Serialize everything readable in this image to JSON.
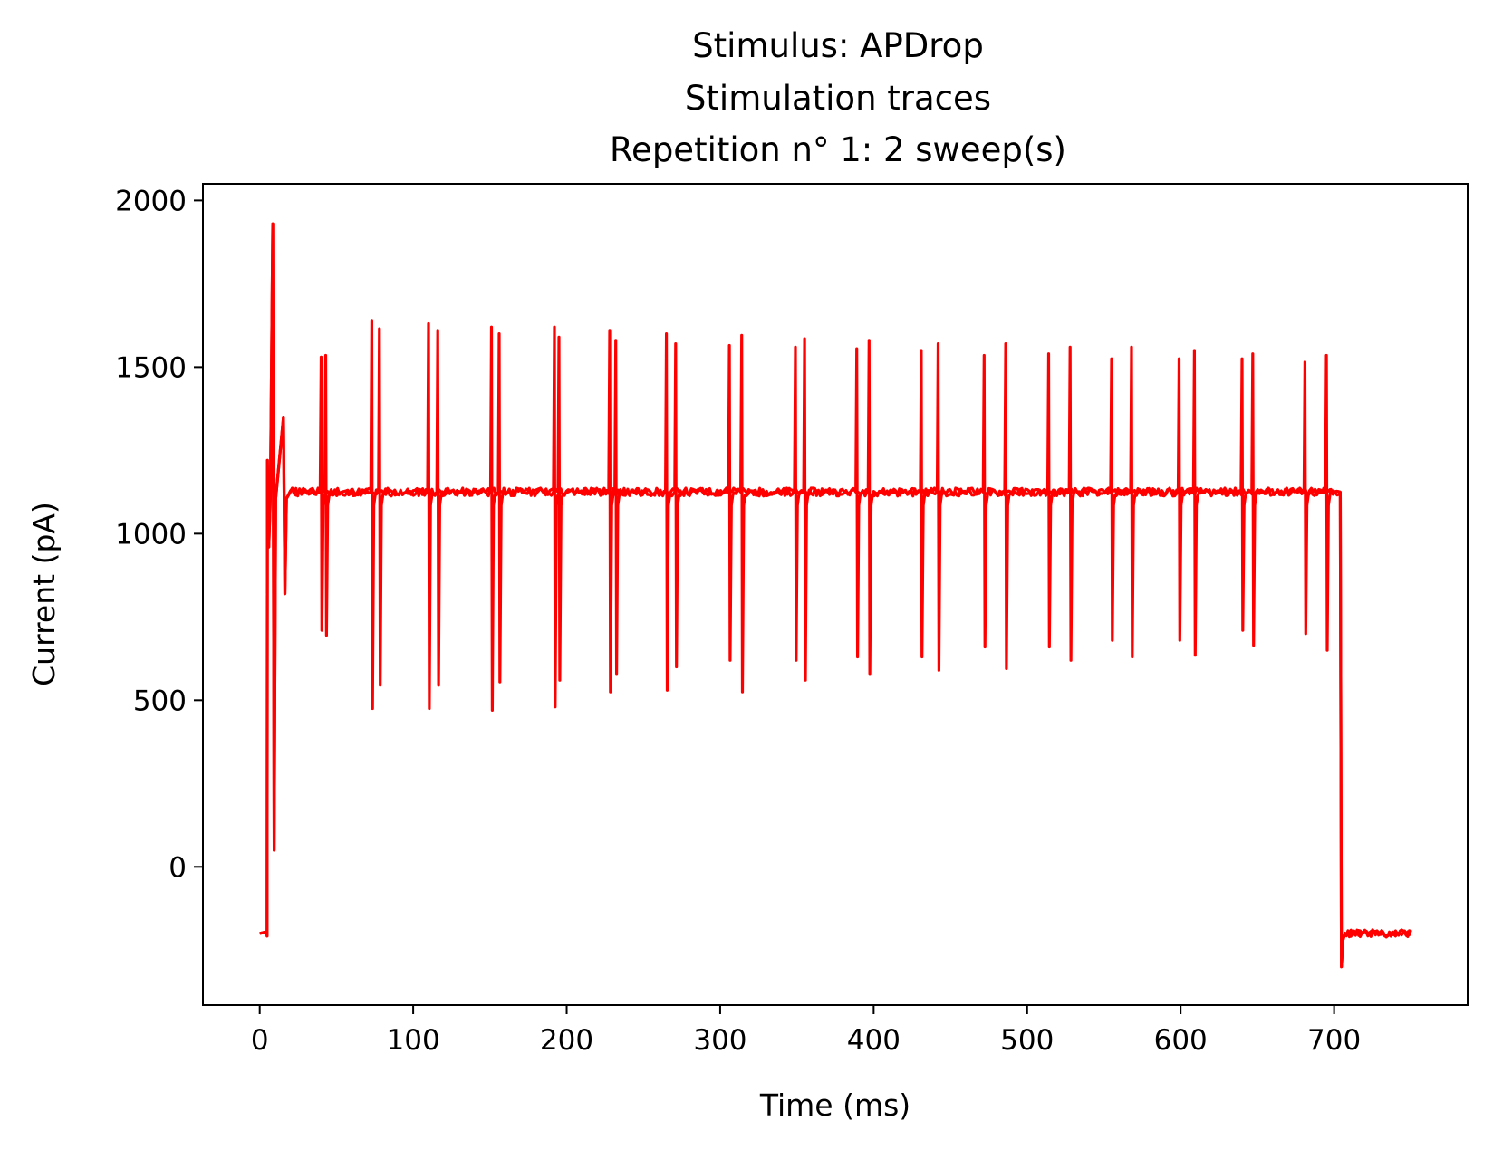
{
  "chart_data": {
    "type": "line",
    "title_lines": [
      "Stimulus: APDrop",
      "Stimulation traces",
      "Repetition n° 1: 2 sweep(s)"
    ],
    "xlabel": "Time (ms)",
    "ylabel": "Current (pA)",
    "xlim": [
      -37,
      787
    ],
    "ylim": [
      -415,
      2050
    ],
    "xticks": [
      0,
      100,
      200,
      300,
      400,
      500,
      600,
      700
    ],
    "yticks": [
      0,
      500,
      1000,
      1500,
      2000
    ],
    "grid": false,
    "legend": "none",
    "series_color": "#ff0000",
    "baseline_pre": -200,
    "plateau": 1125,
    "baseline_post": -200,
    "step_on_time": 5,
    "step_off_time": 704,
    "end_time": 750,
    "onset_transients": [
      {
        "t": 5.5,
        "peak": 1220,
        "trough": 960
      },
      {
        "t": 9,
        "peak": 1930,
        "trough": 50
      },
      {
        "t": 16,
        "peak": 1350,
        "trough": 820
      }
    ],
    "offset_transient_min": -300,
    "series": [
      {
        "spike_times": [
          40,
          73,
          110,
          151,
          192,
          228,
          265,
          306,
          349,
          389,
          431,
          472,
          514,
          555,
          599,
          640,
          681
        ],
        "peaks": [
          1530,
          1640,
          1630,
          1620,
          1620,
          1610,
          1600,
          1565,
          1560,
          1555,
          1550,
          1535,
          1540,
          1525,
          1525,
          1525,
          1515
        ],
        "troughs": [
          710,
          475,
          475,
          470,
          480,
          525,
          530,
          620,
          620,
          630,
          630,
          660,
          660,
          680,
          680,
          710,
          700
        ]
      },
      {
        "spike_times": [
          43,
          78,
          116,
          156,
          195,
          232,
          271,
          314,
          355,
          397,
          442,
          486,
          528,
          568,
          609,
          647,
          695
        ],
        "peaks": [
          1535,
          1615,
          1610,
          1600,
          1590,
          1580,
          1570,
          1595,
          1585,
          1580,
          1570,
          1570,
          1560,
          1560,
          1550,
          1540,
          1535
        ],
        "troughs": [
          695,
          545,
          545,
          555,
          560,
          580,
          600,
          525,
          560,
          580,
          590,
          595,
          620,
          630,
          635,
          665,
          650
        ]
      }
    ]
  }
}
